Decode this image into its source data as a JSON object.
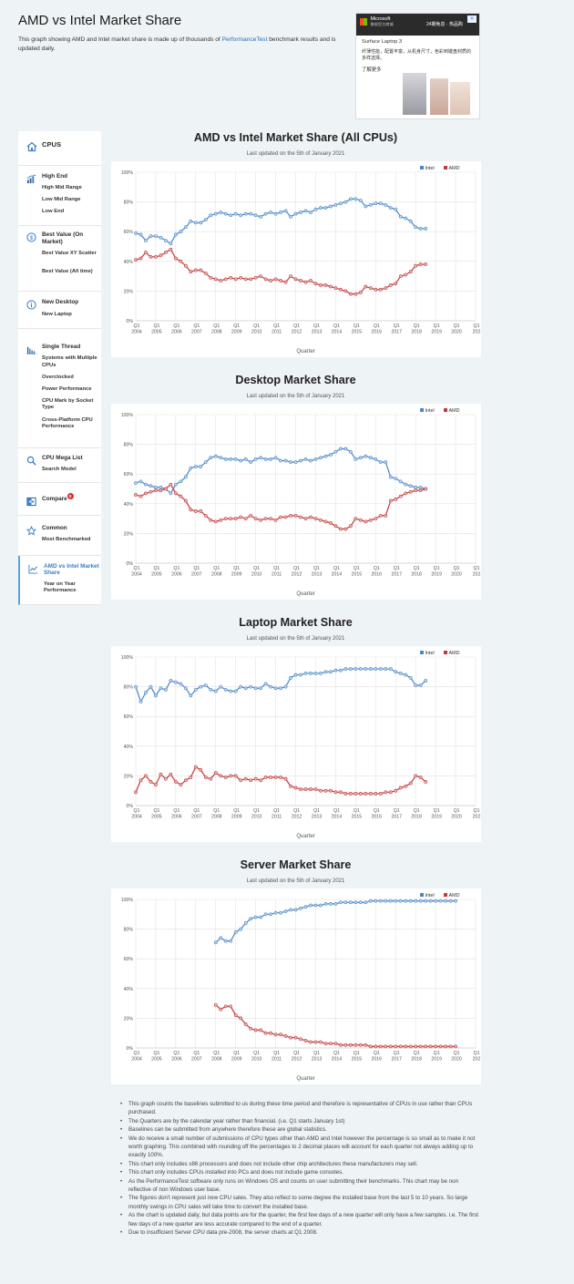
{
  "page": {
    "title": "AMD vs Intel Market Share",
    "desc_before": "This graph showing AMD and Intel market share is made up of thousands of ",
    "desc_link": "PerformanceTest",
    "desc_after": " benchmark results and is updated daily."
  },
  "ad": {
    "brand": "Microsoft",
    "brand_sub": "微软官方商城",
    "cta": "24期免息 · 热品购",
    "close": "✕",
    "headline": "Surface Laptop 3",
    "text": "纤薄性能，配置丰富，从机身尺寸，色彩到键盘材质的多样选择。",
    "more": "了解更多"
  },
  "sidebar": {
    "sections": [
      {
        "icon": "home-icon",
        "head": "CPUS",
        "items": []
      },
      {
        "icon": "bar-chart-icon",
        "head": "High End",
        "items": [
          "High Mid Range",
          "Low Mid Range",
          "Low End"
        ]
      },
      {
        "icon": "dollar-icon",
        "head": "Best Value (On Market)",
        "items": [
          "Best Value XY Scatter",
          "Best Value (All time)"
        ]
      },
      {
        "icon": "info-icon",
        "head": "New Desktop",
        "items": [
          "New Laptop"
        ]
      },
      {
        "icon": "column-chart-icon",
        "head": "Single Thread",
        "items": [
          "Systems with Multiple CPUs",
          "Overclocked",
          "Power Performance",
          "CPU Mark by Socket Type",
          "Cross-Platform CPU Performance"
        ]
      },
      {
        "icon": "search-icon",
        "head": "CPU Mega List",
        "items": [
          "Search Model"
        ]
      },
      {
        "icon": "compare-icon",
        "head": "Compare",
        "badge": "0",
        "items": []
      },
      {
        "icon": "star-icon",
        "head": "Common",
        "items": [
          "Most Benchmarked"
        ]
      },
      {
        "icon": "trend-chart-icon",
        "head": "AMD vs Intel Market Share",
        "items": [
          "Year on Year Performance"
        ]
      }
    ]
  },
  "colors": {
    "intel": "#4a86c7",
    "amd": "#c23b3b",
    "grid": "#e2e2e2",
    "text": "#555555"
  },
  "chart_data": [
    {
      "type": "line",
      "title": "AMD vs Intel Market Share (All CPUs)",
      "subtitle": "Last updated on the 5th of January 2021",
      "xlabel": "Quarter",
      "ylabel": "",
      "ylim": [
        0,
        100
      ],
      "yticks": [
        "0%",
        "20%",
        "40%",
        "60%",
        "80%",
        "100%"
      ],
      "x_start": "Q1 2004",
      "xticks": [
        [
          "Q1",
          "2004"
        ],
        [
          "Q1",
          "2005"
        ],
        [
          "Q1",
          "2006"
        ],
        [
          "Q1",
          "2007"
        ],
        [
          "Q1",
          "2008"
        ],
        [
          "Q1",
          "2009"
        ],
        [
          "Q1",
          "2010"
        ],
        [
          "Q1",
          "2011"
        ],
        [
          "Q1",
          "2012"
        ],
        [
          "Q1",
          "2013"
        ],
        [
          "Q1",
          "2014"
        ],
        [
          "Q1",
          "2015"
        ],
        [
          "Q1",
          "2016"
        ],
        [
          "Q1",
          "2017"
        ],
        [
          "Q1",
          "2018"
        ],
        [
          "Q1",
          "2019"
        ],
        [
          "Q1",
          "2020"
        ],
        [
          "Q1",
          "202"
        ]
      ],
      "legend_position": "top-right",
      "series": [
        {
          "name": "Intel",
          "values": [
            59,
            58,
            54,
            57,
            57,
            56,
            54,
            52,
            58,
            60,
            63,
            67,
            66,
            66,
            68,
            71,
            72,
            73,
            72,
            71,
            72,
            71,
            72,
            72,
            71,
            70,
            72,
            73,
            72,
            73,
            74,
            70,
            72,
            73,
            74,
            73,
            75,
            76,
            76,
            77,
            78,
            79,
            80,
            82,
            82,
            81,
            77,
            78,
            79,
            79,
            78,
            76,
            75,
            70,
            69,
            67,
            63,
            62,
            62
          ],
          "values_continued": []
        },
        {
          "name": "AMD",
          "values": [
            41,
            42,
            46,
            43,
            43,
            44,
            46,
            48,
            42,
            40,
            37,
            33,
            34,
            34,
            32,
            29,
            28,
            27,
            28,
            29,
            28,
            29,
            28,
            28,
            29,
            30,
            28,
            27,
            28,
            27,
            26,
            30,
            28,
            27,
            26,
            27,
            25,
            24,
            24,
            23,
            22,
            21,
            20,
            18,
            18,
            19,
            23,
            22,
            21,
            21,
            22,
            24,
            25,
            30,
            31,
            33,
            37,
            38,
            38
          ]
        }
      ]
    },
    {
      "type": "line",
      "title": "Desktop Market Share",
      "subtitle": "Last updated on the 5th of January 2021",
      "xlabel": "Quarter",
      "ylabel": "",
      "ylim": [
        0,
        100
      ],
      "yticks": [
        "0%",
        "20%",
        "40%",
        "60%",
        "80%",
        "100%"
      ],
      "x_start": "Q1 2004",
      "xticks": [
        [
          "Q1",
          "2004"
        ],
        [
          "Q1",
          "2005"
        ],
        [
          "Q1",
          "2006"
        ],
        [
          "Q1",
          "2007"
        ],
        [
          "Q1",
          "2008"
        ],
        [
          "Q1",
          "2009"
        ],
        [
          "Q1",
          "2010"
        ],
        [
          "Q1",
          "2011"
        ],
        [
          "Q1",
          "2012"
        ],
        [
          "Q1",
          "2013"
        ],
        [
          "Q1",
          "2014"
        ],
        [
          "Q1",
          "2015"
        ],
        [
          "Q1",
          "2016"
        ],
        [
          "Q1",
          "2017"
        ],
        [
          "Q1",
          "2018"
        ],
        [
          "Q1",
          "2019"
        ],
        [
          "Q1",
          "2020"
        ],
        [
          "Q1",
          "202"
        ]
      ],
      "legend_position": "top-right",
      "series": [
        {
          "name": "Intel",
          "values": [
            54,
            55,
            53,
            52,
            51,
            51,
            50,
            47,
            53,
            55,
            58,
            64,
            65,
            65,
            68,
            71,
            72,
            71,
            70,
            70,
            70,
            69,
            70,
            68,
            70,
            71,
            70,
            70,
            71,
            69,
            69,
            68,
            68,
            69,
            70,
            69,
            70,
            71,
            72,
            73,
            75,
            77,
            77,
            75,
            70,
            71,
            72,
            71,
            70,
            68,
            68,
            58,
            57,
            55,
            53,
            52,
            51,
            51,
            50
          ],
          "values_continued": []
        },
        {
          "name": "AMD",
          "values": [
            46,
            45,
            47,
            48,
            49,
            49,
            50,
            53,
            47,
            45,
            42,
            36,
            35,
            35,
            32,
            29,
            28,
            29,
            30,
            30,
            30,
            31,
            30,
            32,
            30,
            29,
            30,
            30,
            29,
            31,
            31,
            32,
            32,
            31,
            30,
            31,
            30,
            29,
            28,
            27,
            25,
            23,
            23,
            25,
            30,
            29,
            28,
            29,
            30,
            32,
            32,
            42,
            43,
            45,
            47,
            48,
            49,
            49,
            50
          ]
        }
      ]
    },
    {
      "type": "line",
      "title": "Laptop Market Share",
      "subtitle": "Last updated on the 5th of January 2021",
      "xlabel": "Quarter",
      "ylabel": "",
      "ylim": [
        0,
        100
      ],
      "yticks": [
        "0%",
        "20%",
        "40%",
        "60%",
        "80%",
        "100%"
      ],
      "x_start": "Q1 2004",
      "xticks": [
        [
          "Q1",
          "2004"
        ],
        [
          "Q1",
          "2005"
        ],
        [
          "Q1",
          "2006"
        ],
        [
          "Q1",
          "2007"
        ],
        [
          "Q1",
          "2008"
        ],
        [
          "Q1",
          "2009"
        ],
        [
          "Q1",
          "2010"
        ],
        [
          "Q1",
          "2011"
        ],
        [
          "Q1",
          "2012"
        ],
        [
          "Q1",
          "2013"
        ],
        [
          "Q1",
          "2014"
        ],
        [
          "Q1",
          "2015"
        ],
        [
          "Q1",
          "2016"
        ],
        [
          "Q1",
          "2017"
        ],
        [
          "Q1",
          "2018"
        ],
        [
          "Q1",
          "2019"
        ],
        [
          "Q1",
          "2020"
        ],
        [
          "Q1",
          "202"
        ]
      ],
      "legend_position": "top-right",
      "series": [
        {
          "name": "Intel",
          "values": [
            80,
            70,
            76,
            80,
            74,
            79,
            78,
            84,
            83,
            82,
            79,
            74,
            78,
            80,
            81,
            78,
            77,
            80,
            78,
            77,
            77,
            80,
            79,
            80,
            79,
            79,
            82,
            80,
            79,
            79,
            80,
            86,
            88,
            88,
            89,
            89,
            89,
            89,
            90,
            90,
            91,
            91,
            92,
            92,
            92,
            92,
            92,
            92,
            92,
            92,
            92,
            92,
            90,
            89,
            88,
            86,
            81,
            81,
            84
          ],
          "values_continued": []
        },
        {
          "name": "AMD",
          "values": [
            9,
            17,
            20,
            16,
            14,
            21,
            18,
            21,
            16,
            14,
            17,
            19,
            26,
            24,
            19,
            18,
            22,
            20,
            19,
            20,
            20,
            17,
            18,
            17,
            18,
            17,
            19,
            19,
            19,
            19,
            18,
            13,
            12,
            11,
            11,
            11,
            11,
            10,
            10,
            10,
            9,
            9,
            8,
            8,
            8,
            8,
            8,
            8,
            8,
            8,
            9,
            9,
            10,
            12,
            13,
            15,
            20,
            19,
            16
          ]
        }
      ]
    },
    {
      "type": "line",
      "title": "Server Market Share",
      "subtitle": "Last updated on the 5th of January 2021",
      "xlabel": "Quarter",
      "ylabel": "",
      "ylim": [
        0,
        100
      ],
      "yticks": [
        "0%",
        "20%",
        "40%",
        "60%",
        "80%",
        "100%"
      ],
      "x_start": "Q1 2004",
      "xticks": [
        [
          "Q1",
          "2004"
        ],
        [
          "Q1",
          "2005"
        ],
        [
          "Q1",
          "2006"
        ],
        [
          "Q1",
          "2007"
        ],
        [
          "Q1",
          "2008"
        ],
        [
          "Q1",
          "2009"
        ],
        [
          "Q1",
          "2010"
        ],
        [
          "Q1",
          "2011"
        ],
        [
          "Q1",
          "2012"
        ],
        [
          "Q1",
          "2013"
        ],
        [
          "Q1",
          "2014"
        ],
        [
          "Q1",
          "2015"
        ],
        [
          "Q1",
          "2016"
        ],
        [
          "Q1",
          "2017"
        ],
        [
          "Q1",
          "2018"
        ],
        [
          "Q1",
          "2019"
        ],
        [
          "Q1",
          "2020"
        ],
        [
          "Q1",
          "202"
        ]
      ],
      "legend_position": "top-right",
      "series": [
        {
          "name": "Intel",
          "x_first": "Q1 2008",
          "values": [
            71,
            74,
            72,
            72,
            78,
            80,
            84,
            87,
            88,
            88,
            90,
            90,
            91,
            91,
            92,
            93,
            93,
            94,
            95,
            96,
            96,
            96,
            97,
            97,
            97,
            98,
            98,
            98,
            98,
            98,
            98,
            99,
            99,
            99,
            99,
            99,
            99,
            99,
            99,
            99,
            99,
            99,
            99,
            99,
            99,
            99,
            99,
            99,
            99
          ],
          "values_continued": []
        },
        {
          "name": "AMD",
          "x_first": "Q1 2008",
          "values": [
            29,
            26,
            28,
            28,
            22,
            20,
            16,
            13,
            12,
            12,
            10,
            10,
            9,
            9,
            8,
            7,
            7,
            6,
            5,
            4,
            4,
            4,
            3,
            3,
            3,
            2,
            2,
            2,
            2,
            2,
            2,
            1,
            1,
            1,
            1,
            1,
            1,
            1,
            1,
            1,
            1,
            1,
            1,
            1,
            1,
            1,
            1,
            1,
            1
          ]
        }
      ]
    }
  ],
  "notes": [
    "This graph counts the baselines submitted to us during these time period and therefore is representative of CPUs in use rather than CPUs purchased.",
    "The Quarters are by the calendar year rather than financial. (i.e. Q1 starts January 1st)",
    "Baselines can be submitted from anywhere therefore these are global statistics.",
    "We do receive a small number of submissions of CPU types other than AMD and Intel however the percentage is so small as to make it not worth graphing. This combined with rounding off the percentages to 2 decimal places will account for each quarter not always adding up to exactly 100%.",
    "This chart only includes x86 processors and does not include other chip architectures these manufacturers may sell.",
    "This chart only includes CPUs installed into PCs and does not include game consoles.",
    "As the PerformanceTest software only runs on Windows OS and counts on user submitting their benchmarks. This chart may be non reflective of non Windows user base.",
    "The figures don't represent just new CPU sales. They also reflect to some degree the installed base from the last 5 to 10 years. So large monthly swings in CPU sales will take time to convert the installed base.",
    "As the chart is updated daily, but data points are for the quarter, the first few days of a new quarter will only have a few samples. i.e. The first few days of a new quarter are less accurate compared to the end of a quarter.",
    "Due to insufficient Server CPU data pre-2008, the server charts at Q1 2008."
  ]
}
